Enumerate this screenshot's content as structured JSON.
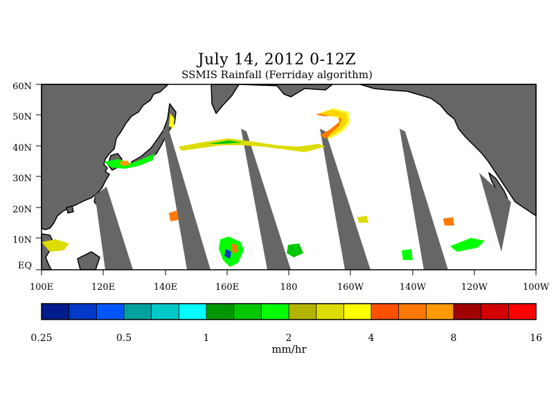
{
  "header": {
    "title": "July 14, 2012 0-12Z",
    "subtitle": "SSMIS Rainfall (Ferriday algorithm)"
  },
  "map": {
    "lat_labels": [
      "60N",
      "50N",
      "40N",
      "30N",
      "20N",
      "10N",
      "EQ"
    ],
    "lon_labels": [
      "100E",
      "120E",
      "140E",
      "160E",
      "180",
      "160W",
      "140W",
      "120W",
      "100W"
    ],
    "lat_range": [
      0,
      60
    ],
    "lon_range": [
      100,
      260
    ],
    "land_color": "#666666",
    "no_data_color": "#666666",
    "ocean_color": "#ffffff"
  },
  "colorbar": {
    "labels": [
      "0.25",
      "0.5",
      "1",
      "2",
      "4",
      "8",
      "16"
    ],
    "units": "mm/hr",
    "colors": [
      "#001c8c",
      "#0038c8",
      "#0055ff",
      "#00a09e",
      "#00c8c8",
      "#00ffff",
      "#009600",
      "#00c800",
      "#00ff00",
      "#b4b400",
      "#dcdc00",
      "#ffff00",
      "#ff5000",
      "#ff7800",
      "#ff9a00",
      "#a00000",
      "#d20000",
      "#ff0000"
    ]
  }
}
